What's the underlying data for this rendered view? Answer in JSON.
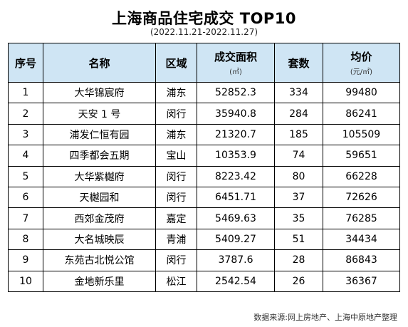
{
  "title": "上海商品住宅成交 TOP10",
  "subtitle": "(2022.11.21-2022.11.27)",
  "table": {
    "headers": {
      "rank": "序号",
      "name": "名称",
      "district": "区域",
      "area": "成交面积",
      "area_unit": "(㎡)",
      "units": "套数",
      "price": "均价",
      "price_unit": "(元/㎡)"
    },
    "rows": [
      {
        "rank": "1",
        "name": "大华锦宸府",
        "district": "浦东",
        "area": "52852.3",
        "units": "334",
        "price": "99480"
      },
      {
        "rank": "2",
        "name": "天安 1 号",
        "district": "闵行",
        "area": "35940.8",
        "units": "284",
        "price": "86241"
      },
      {
        "rank": "3",
        "name": "浦发仁恒有园",
        "district": "浦东",
        "area": "21320.7",
        "units": "185",
        "price": "105509"
      },
      {
        "rank": "4",
        "name": "四季都会五期",
        "district": "宝山",
        "area": "10353.9",
        "units": "74",
        "price": "59651"
      },
      {
        "rank": "5",
        "name": "大华紫樾府",
        "district": "闵行",
        "area": "8223.42",
        "units": "80",
        "price": "66228"
      },
      {
        "rank": "6",
        "name": "天樾园和",
        "district": "闵行",
        "area": "6451.71",
        "units": "37",
        "price": "72626"
      },
      {
        "rank": "7",
        "name": "西郊金茂府",
        "district": "嘉定",
        "area": "5469.63",
        "units": "35",
        "price": "76285"
      },
      {
        "rank": "8",
        "name": "大名城映辰",
        "district": "青浦",
        "area": "5409.27",
        "units": "51",
        "price": "34434"
      },
      {
        "rank": "9",
        "name": "东苑古北悦公馆",
        "district": "闵行",
        "area": "3787.6",
        "units": "28",
        "price": "86843"
      },
      {
        "rank": "10",
        "name": "金地新乐里",
        "district": "松江",
        "area": "2542.54",
        "units": "26",
        "price": "36367"
      }
    ]
  },
  "source": "数据来源:网上房地产、上海中原地产整理",
  "colors": {
    "header_bg": "#cfe5f4",
    "border": "#000000"
  }
}
